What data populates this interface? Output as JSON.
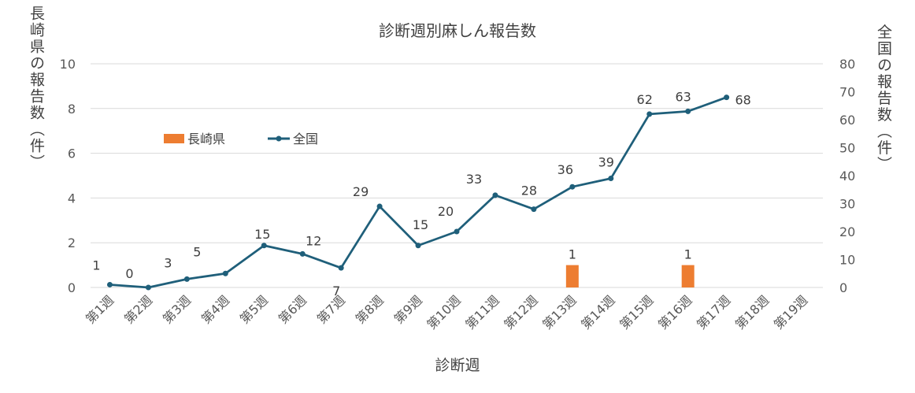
{
  "chart_data": {
    "type": "bar+line",
    "title": "診断週別麻しん報告数",
    "xlabel": "診断週",
    "ylabel_left": "長崎県の報告数（件）",
    "ylabel_right": "全国の報告数（件）",
    "categories": [
      "第1週",
      "第2週",
      "第3週",
      "第4週",
      "第5週",
      "第6週",
      "第7週",
      "第8週",
      "第9週",
      "第10週",
      "第11週",
      "第12週",
      "第13週",
      "第14週",
      "第15週",
      "第16週",
      "第17週",
      "第18週",
      "第19週"
    ],
    "y_left_ticks": [
      "0",
      "2",
      "4",
      "6",
      "8",
      "10"
    ],
    "y_right_ticks": [
      "0",
      "10",
      "20",
      "30",
      "40",
      "50",
      "60",
      "70",
      "80"
    ],
    "ylim_left": [
      0,
      10
    ],
    "ylim_right": [
      0,
      80
    ],
    "grid": true,
    "legend_position": "upper-left inside plot",
    "series": [
      {
        "name": "長崎県",
        "type": "bar",
        "axis": "left",
        "color": "#ED7D31",
        "values": [
          null,
          null,
          null,
          null,
          null,
          null,
          null,
          null,
          null,
          null,
          null,
          null,
          1,
          null,
          null,
          1,
          null,
          null,
          null
        ]
      },
      {
        "name": "全国",
        "type": "line",
        "axis": "right",
        "color": "#1F5F7A",
        "values": [
          1,
          0,
          3,
          5,
          15,
          12,
          7,
          29,
          15,
          20,
          33,
          28,
          36,
          39,
          62,
          63,
          68,
          null,
          null
        ]
      }
    ]
  }
}
